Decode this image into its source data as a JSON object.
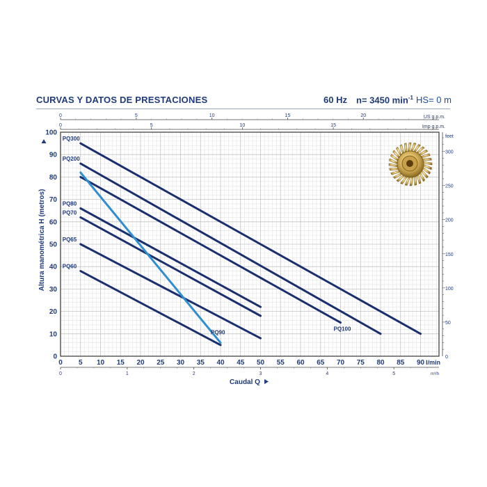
{
  "header": {
    "title": "CURVAS Y DATOS DE PRESTACIONES",
    "freq": "60 Hz",
    "speed": "n= 3450 min",
    "speed_sup": "-1",
    "hs": "HS= 0 m"
  },
  "chart_data": {
    "type": "line",
    "title": "CURVAS Y DATOS DE PRESTACIONES",
    "xlabel": "Caudal Q",
    "ylabel": "Altura manométrica H (metros)",
    "xlim": [
      0,
      95
    ],
    "ylim": [
      0,
      100
    ],
    "grid": true,
    "colors": {
      "dark_series": "#1a2f6e",
      "light_series": "#2f8ed0",
      "axis_text": "#1f3a78"
    },
    "x_ticks": [
      0,
      5,
      10,
      15,
      20,
      25,
      30,
      35,
      40,
      45,
      50,
      55,
      60,
      65,
      70,
      75,
      80,
      85,
      90
    ],
    "x_unit": "l/min",
    "y_ticks": [
      0,
      10,
      20,
      30,
      40,
      50,
      60,
      70,
      80,
      90,
      100
    ],
    "secondary_axes": {
      "us_gpm": {
        "unit": "US g.p.m.",
        "ticks": [
          0,
          5,
          10,
          15,
          20
        ],
        "per_unit_lpm": 3.785
      },
      "imp_gpm": {
        "unit": "Imp g.p.m.",
        "ticks": [
          0,
          5,
          10,
          15
        ],
        "per_unit_lpm": 4.546
      },
      "m3h": {
        "unit": "m³/h",
        "ticks": [
          0,
          1,
          2,
          3,
          4,
          5
        ],
        "per_unit_lpm": 16.667
      },
      "feet": {
        "unit": "feet",
        "ticks": [
          0,
          50,
          100,
          150,
          200,
          250,
          300
        ],
        "per_unit_m": 3.281
      }
    },
    "series": [
      {
        "name": "PQ300",
        "x": [
          5,
          90
        ],
        "y": [
          95,
          10
        ],
        "color": "dark"
      },
      {
        "name": "PQ200",
        "x": [
          5,
          80
        ],
        "y": [
          86,
          10
        ],
        "color": "dark"
      },
      {
        "name": "PQ100",
        "x": [
          5,
          70
        ],
        "y": [
          80,
          15
        ],
        "color": "dark"
      },
      {
        "name": "PQ80",
        "x": [
          5,
          50
        ],
        "y": [
          66,
          22
        ],
        "color": "dark"
      },
      {
        "name": "PQ70",
        "x": [
          5,
          50
        ],
        "y": [
          62,
          18
        ],
        "color": "dark"
      },
      {
        "name": "PQ65",
        "x": [
          5,
          50
        ],
        "y": [
          50,
          8
        ],
        "color": "dark"
      },
      {
        "name": "PQ60",
        "x": [
          5,
          40
        ],
        "y": [
          38,
          5
        ],
        "color": "dark"
      },
      {
        "name": "PQ90",
        "x": [
          5,
          40
        ],
        "y": [
          82,
          6
        ],
        "color": "light"
      }
    ],
    "label_positions": {
      "PQ300": "left-start",
      "PQ200": "left-start",
      "PQ80": "left-start",
      "PQ70": "left-start",
      "PQ65": "left-start",
      "PQ60": "left-start",
      "PQ90": "near-end",
      "PQ100": "below-end"
    }
  },
  "impeller_icon": "brass-impeller"
}
